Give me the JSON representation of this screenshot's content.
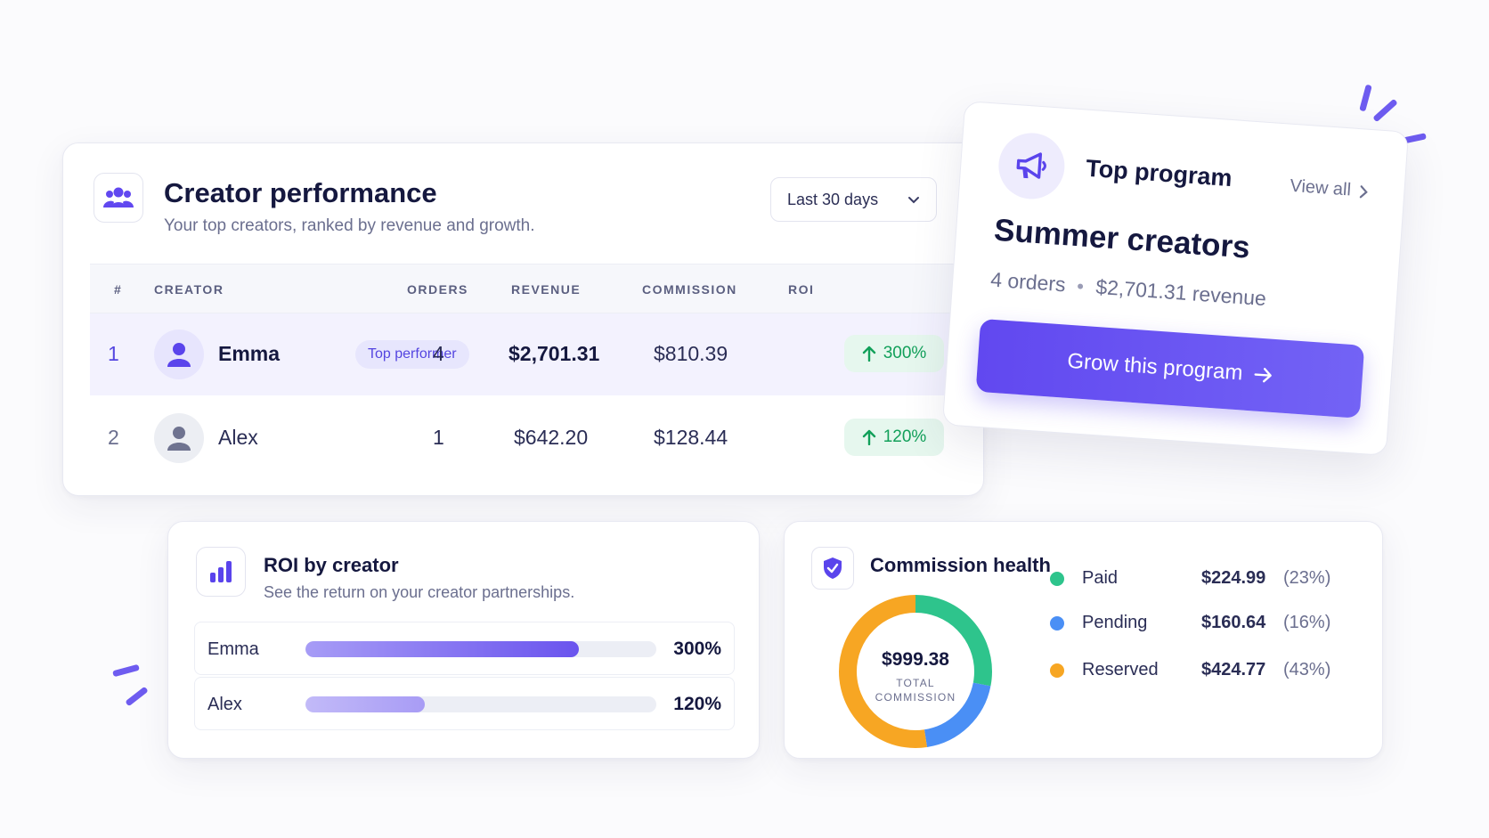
{
  "performance": {
    "title": "Creator performance",
    "subtitle": "Your top creators, ranked by revenue and growth.",
    "period": "Last 30 days",
    "columns": [
      "#",
      "CREATOR",
      "ORDERS",
      "REVENUE",
      "COMMISSION",
      "ROI"
    ],
    "rows": [
      {
        "rank": "1",
        "name": "Emma",
        "badge": "Top performer",
        "orders": "4",
        "revenue": "$2,701.31",
        "commission": "$810.39",
        "roi": "300%"
      },
      {
        "rank": "2",
        "name": "Alex",
        "orders": "1",
        "revenue": "$642.20",
        "commission": "$128.44",
        "roi": "120%"
      }
    ],
    "icon": "users-icon"
  },
  "program": {
    "title": "Top program",
    "view_all": "View all",
    "name": "Summer creators",
    "orders": "4 orders",
    "revenue": "$2,701.31 revenue",
    "button": "Grow this program",
    "icon": "megaphone-icon"
  },
  "roi": {
    "title": "ROI by creator",
    "subtitle": "See the return on your creator partnerships.",
    "items": [
      {
        "name": "Emma",
        "value": "300%",
        "fraction": 0.78
      },
      {
        "name": "Alex",
        "value": "120%",
        "fraction": 0.34
      }
    ]
  },
  "health": {
    "title": "Commission health",
    "total": "$999.38",
    "total_label": "TOTAL COMMISSION",
    "items": [
      {
        "name": "Paid",
        "amount": "$224.99",
        "pct": "(23%)",
        "share": 23,
        "color": "#2ec48c"
      },
      {
        "name": "Pending",
        "amount": "$160.64",
        "pct": "(16%)",
        "share": 16,
        "color": "#4a8ff5"
      },
      {
        "name": "Reserved",
        "amount": "$424.77",
        "pct": "(43%)",
        "share": 43,
        "color": "#f7a623"
      }
    ]
  },
  "colors": {
    "accent": "#6148f0",
    "success": "#12a05a",
    "success_bg": "#e6f7ee"
  }
}
